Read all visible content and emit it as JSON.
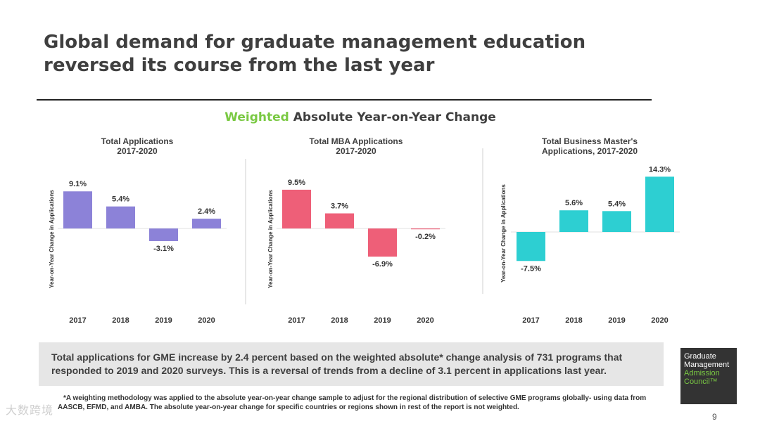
{
  "title": "Global demand for graduate management education reversed its course from the last year",
  "subhead": {
    "accent": "Weighted",
    "rest": " Absolute Year-on-Year Change"
  },
  "chart_data": [
    {
      "type": "bar",
      "title_lines": [
        "Total Applications",
        "2017-2020"
      ],
      "categories": [
        "2017",
        "2018",
        "2019",
        "2020"
      ],
      "values": [
        9.1,
        5.4,
        -3.1,
        2.4
      ],
      "labels": [
        "9.1%",
        "5.4%",
        "-3.1%",
        "2.4%"
      ],
      "ylabel": "Year-on-Year Change in Applications",
      "color": "#8c82d8"
    },
    {
      "type": "bar",
      "title_lines": [
        "Total MBA Applications",
        "2017-2020"
      ],
      "categories": [
        "2017",
        "2018",
        "2019",
        "2020"
      ],
      "values": [
        9.5,
        3.7,
        -6.9,
        -0.2
      ],
      "labels": [
        "9.5%",
        "3.7%",
        "-6.9%",
        "-0.2%"
      ],
      "ylabel": "Year-on-Year Change in Applications",
      "color": "#ee5f78"
    },
    {
      "type": "bar",
      "title_lines": [
        "Total Business Master's",
        "Applications, 2017-2020"
      ],
      "categories": [
        "2017",
        "2018",
        "2019",
        "2020"
      ],
      "values": [
        -7.5,
        5.6,
        5.4,
        14.3
      ],
      "labels": [
        "-7.5%",
        "5.6%",
        "5.4%",
        "14.3%"
      ],
      "ylabel": "Year-on-Year Change in Applications",
      "color": "#2dcfd2"
    }
  ],
  "summary": "Total applications for GME increase by 2.4 percent based on the weighted absolute* change analysis of 731 programs that responded to 2019 and 2020 surveys. This is a reversal of trends from a decline of 3.1 percent in applications last year.",
  "footnote": "*A weighting methodology was applied to the absolute year-on-year change sample to adjust for the regional distribution of selective GME programs globally- using data from AASCB, EFMD, and AMBA. The absolute year-on-year change for specific countries or regions shown in rest of the report is not weighted.",
  "logo": {
    "line1": "Graduate",
    "line2": "Management",
    "line3": "Admission",
    "line4": "Council™"
  },
  "page_number": "9",
  "watermark": "大数跨境"
}
